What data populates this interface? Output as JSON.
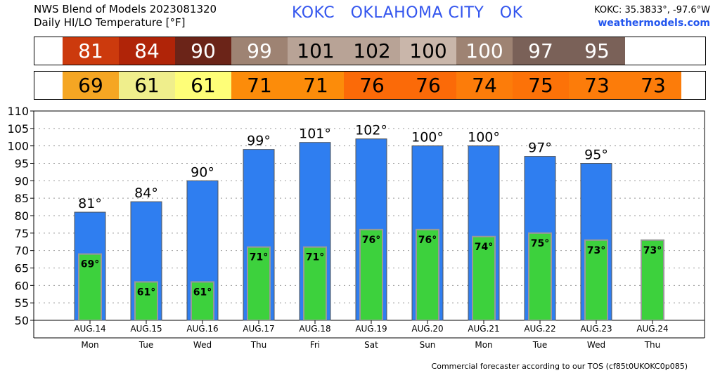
{
  "header": {
    "line1": "NWS Blend of Models 2023081320",
    "line2": "Daily HI/LO Temperature [°F]",
    "station": "KOKC   OKLAHOMA CITY   OK",
    "coords": "KOKC: 35.3833°, -97.6°W",
    "website": "weathermodels.com"
  },
  "footer": "Commercial forecaster according to our TOS (cf85t0UKOKC0p085)",
  "colors": {
    "hi_bar": "#2f7ef0",
    "lo_bar": "#3dd13d",
    "hi_strip": [
      "#cc3a0d",
      "#b02408",
      "#6b2418",
      "#9e8373",
      "#b8a396",
      "#b8a396",
      "#c9b6aa",
      "#9e8373",
      "#7a6158",
      "#7a6158"
    ],
    "hi_strip_text": [
      "#ffffff",
      "#ffffff",
      "#ffffff",
      "#ffffff",
      "#000000",
      "#000000",
      "#000000",
      "#ffffff",
      "#ffffff",
      "#ffffff"
    ],
    "lo_strip": [
      "#f5a623",
      "#efee8c",
      "#fefe78",
      "#fc8c0a",
      "#fc8c0a",
      "#fb6a08",
      "#fb6a08",
      "#fc7c0a",
      "#fc7208",
      "#fc7c0a",
      "#fc7c0a"
    ]
  },
  "chart_data": {
    "type": "bar",
    "categories": [
      "AUG.14",
      "AUG.15",
      "AUG.16",
      "AUG.17",
      "AUG.18",
      "AUG.19",
      "AUG.20",
      "AUG.21",
      "AUG.22",
      "AUG.23",
      "AUG.24"
    ],
    "weekdays": [
      "Mon",
      "Tue",
      "Wed",
      "Thu",
      "Fri",
      "Sat",
      "Sun",
      "Mon",
      "Tue",
      "Wed",
      "Thu"
    ],
    "series": [
      {
        "values": [
          81,
          84,
          90,
          99,
          101,
          102,
          100,
          100,
          97,
          95,
          null
        ]
      },
      {
        "values": [
          69,
          61,
          61,
          71,
          71,
          76,
          76,
          74,
          75,
          73,
          73
        ]
      }
    ],
    "ylim": [
      50,
      110
    ],
    "yticks": [
      50,
      55,
      60,
      65,
      70,
      75,
      80,
      85,
      90,
      95,
      100,
      105,
      110
    ],
    "degree_symbol": "°",
    "grid": true
  }
}
